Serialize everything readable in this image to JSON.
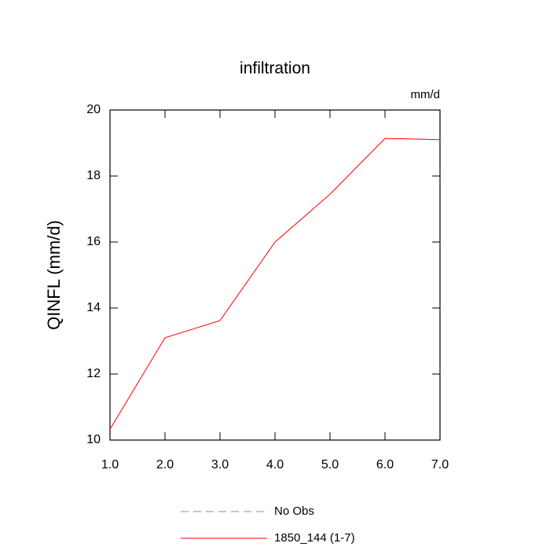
{
  "chart_data": {
    "type": "line",
    "title": "infiltration",
    "units": "mm/d",
    "ylabel": "QINFL  (mm/d)",
    "x": [
      1,
      2,
      3,
      4,
      5,
      6,
      7
    ],
    "xlim": [
      1,
      7
    ],
    "xticks": [
      {
        "value": 1,
        "label": "1.0"
      },
      {
        "value": 2,
        "label": "2.0"
      },
      {
        "value": 3,
        "label": "3.0"
      },
      {
        "value": 4,
        "label": "4.0"
      },
      {
        "value": 5,
        "label": "5.0"
      },
      {
        "value": 6,
        "label": "6.0"
      },
      {
        "value": 7,
        "label": "7.0"
      }
    ],
    "ylim": [
      10,
      20
    ],
    "yticks": [
      10,
      12,
      14,
      16,
      18,
      20
    ],
    "series": [
      {
        "name": "No Obs",
        "color": "#8080ff",
        "dashed": true,
        "values": [
          null,
          null,
          null,
          null,
          null,
          null,
          null
        ]
      },
      {
        "name": "1850_144 (1-7)",
        "color": "#ff0000",
        "dashed": false,
        "values": [
          10.33,
          13.1,
          13.62,
          16.0,
          17.45,
          19.14,
          19.1
        ]
      }
    ]
  }
}
